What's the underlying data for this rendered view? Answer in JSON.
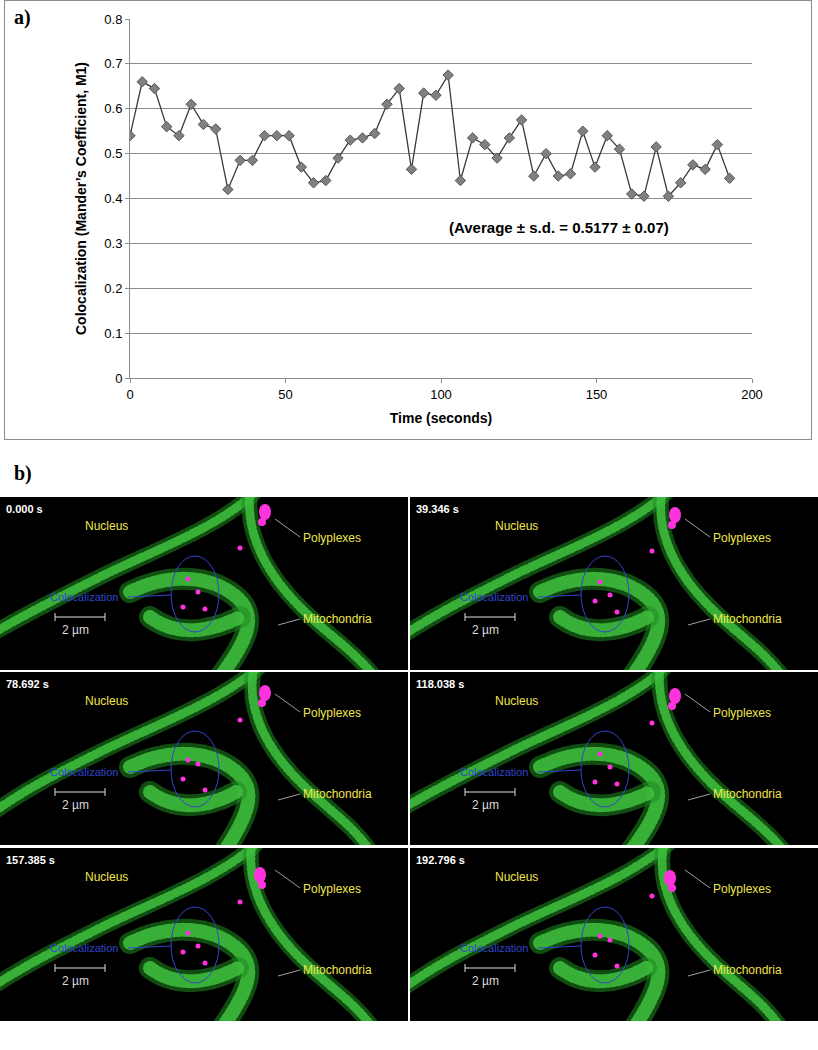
{
  "chart_data": {
    "type": "line",
    "panel_label": "a)",
    "x_label": "Time (seconds)",
    "y_label": "Colocalization (Mander’s Coefficient, M1)",
    "annotation": "(Average ± s.d. = 0.5177 ± 0.07)",
    "x": [
      0,
      3.93,
      7.87,
      11.8,
      15.74,
      19.67,
      23.61,
      27.54,
      31.48,
      35.41,
      39.35,
      43.28,
      47.22,
      51.15,
      55.08,
      59.02,
      62.95,
      66.89,
      70.82,
      74.76,
      78.69,
      82.63,
      86.56,
      90.5,
      94.43,
      98.37,
      102.3,
      106.23,
      110.17,
      114.1,
      118.04,
      121.97,
      125.91,
      129.84,
      133.78,
      137.71,
      141.65,
      145.58,
      149.51,
      153.45,
      157.38,
      161.32,
      165.25,
      169.19,
      173.12,
      177.06,
      180.99,
      184.93,
      188.86,
      192.8
    ],
    "values": [
      0.54,
      0.66,
      0.645,
      0.56,
      0.54,
      0.61,
      0.565,
      0.555,
      0.42,
      0.485,
      0.485,
      0.54,
      0.54,
      0.54,
      0.47,
      0.435,
      0.44,
      0.49,
      0.53,
      0.535,
      0.545,
      0.61,
      0.645,
      0.465,
      0.635,
      0.63,
      0.675,
      0.44,
      0.535,
      0.52,
      0.49,
      0.535,
      0.575,
      0.45,
      0.5,
      0.45,
      0.455,
      0.55,
      0.47,
      0.54,
      0.51,
      0.41,
      0.405,
      0.515,
      0.405,
      0.435,
      0.475,
      0.465,
      0.52,
      0.445
    ],
    "color": "#808080",
    "marker": "diamond",
    "line_style": "solid",
    "xlim": [
      0,
      200
    ],
    "xticks": [
      0,
      50,
      100,
      150,
      200
    ],
    "ylim": [
      0,
      0.8
    ],
    "yticks": [
      0,
      0.1,
      0.2,
      0.3,
      0.4,
      0.5,
      0.6,
      0.7,
      0.8
    ],
    "grid": true
  },
  "image_panels": {
    "panel_label": "b)",
    "frames": [
      "0.000 s",
      "39.346 s",
      "78.692 s",
      "118.038 s",
      "157.385 s",
      "192.796 s"
    ],
    "labels": {
      "nucleus": "Nucleus",
      "polyplexes": "Polyplexes",
      "colocalization": "Colocalization",
      "mitochondria": "Mitochondria"
    },
    "scale_bar": "2 µm"
  }
}
